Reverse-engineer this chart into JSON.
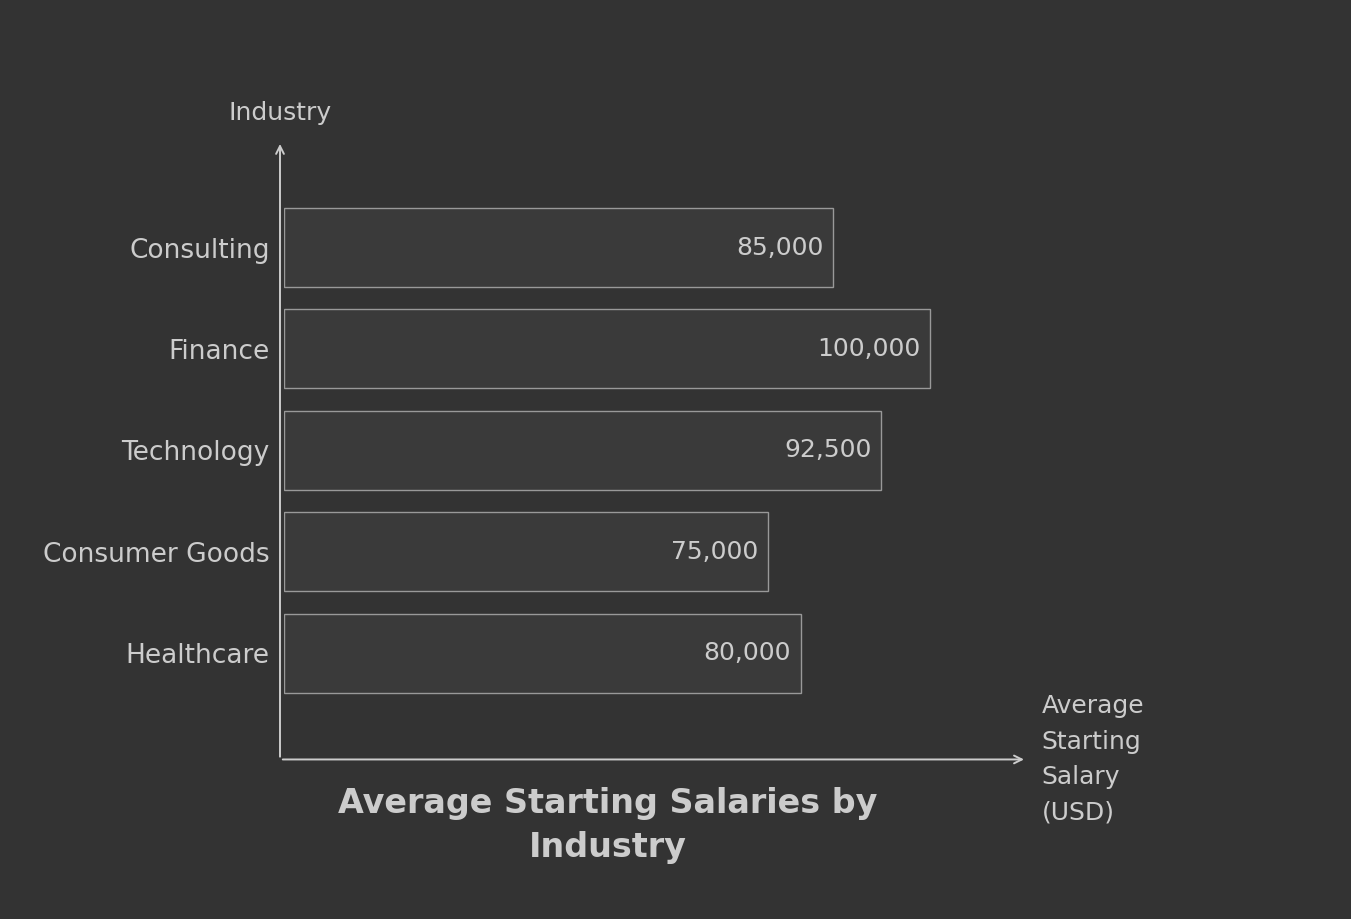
{
  "title": "Average Starting Salaries by\nIndustry",
  "categories": [
    "Healthcare",
    "Consumer Goods",
    "Technology",
    "Finance",
    "Consulting"
  ],
  "values": [
    80000,
    75000,
    92500,
    100000,
    85000
  ],
  "bar_color": "#3a3a3a",
  "bar_edge_color": "#999999",
  "background_color": "#333333",
  "text_color": "#cccccc",
  "title_color": "#cccccc",
  "ylabel": "Industry",
  "xlabel": "Average\nStarting\nSalary\n(USD)",
  "value_labels": [
    "80,000",
    "75,000",
    "92,500",
    "100,000",
    "85,000"
  ],
  "bar_linewidth": 1.0,
  "title_fontsize": 24,
  "label_fontsize": 19,
  "value_fontsize": 18,
  "axis_label_fontsize": 18,
  "xlim": [
    0,
    115000
  ]
}
